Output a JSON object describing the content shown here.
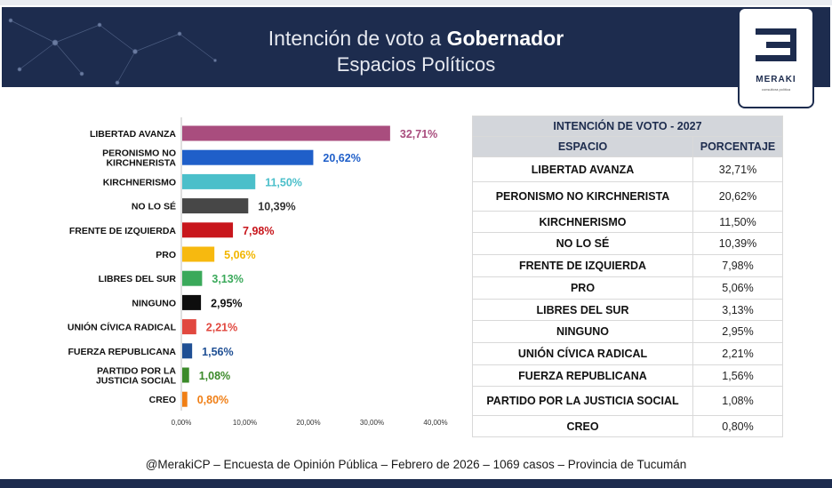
{
  "header": {
    "title_light": "Intención de voto a ",
    "title_bold": "Gobernador",
    "subtitle": "Espacios Políticos"
  },
  "logo": {
    "brand": "MERAKI",
    "tagline": "consultora política"
  },
  "table": {
    "title": "INTENCIÓN DE VOTO - 2027",
    "col_espacio": "ESPACIO",
    "col_porcentaje": "PORCENTAJE",
    "rows": [
      {
        "espacio": "LIBERTAD AVANZA",
        "pct": "32,71%"
      },
      {
        "espacio": "PERONISMO NO KIRCHNERISTA",
        "pct": "20,62%"
      },
      {
        "espacio": "KIRCHNERISMO",
        "pct": "11,50%"
      },
      {
        "espacio": "NO LO SÉ",
        "pct": "10,39%"
      },
      {
        "espacio": "FRENTE DE IZQUIERDA",
        "pct": "7,98%"
      },
      {
        "espacio": "PRO",
        "pct": "5,06%"
      },
      {
        "espacio": "LIBRES DEL SUR",
        "pct": "3,13%"
      },
      {
        "espacio": "NINGUNO",
        "pct": "2,95%"
      },
      {
        "espacio": "UNIÓN CÍVICA RADICAL",
        "pct": "2,21%"
      },
      {
        "espacio": "FUERZA REPUBLICANA",
        "pct": "1,56%"
      },
      {
        "espacio": "PARTIDO POR LA JUSTICIA SOCIAL",
        "pct": "1,08%"
      },
      {
        "espacio": "CREO",
        "pct": "0,80%"
      }
    ]
  },
  "chart_data": {
    "type": "bar",
    "orientation": "horizontal",
    "categories": [
      "LIBERTAD AVANZA",
      "PERONISMO NO KIRCHNERISTA",
      "KIRCHNERISMO",
      "NO LO SÉ",
      "FRENTE DE IZQUIERDA",
      "PRO",
      "LIBRES DEL SUR",
      "NINGUNO",
      "UNIÓN CÍVICA RADICAL",
      "FUERZA REPUBLICANA",
      "PARTIDO POR LA JUSTICIA SOCIAL",
      "CREO"
    ],
    "category_lines": [
      [
        "LIBERTAD AVANZA"
      ],
      [
        "PERONISMO NO",
        "KIRCHNERISTA"
      ],
      [
        "KIRCHNERISMO"
      ],
      [
        "NO LO SÉ"
      ],
      [
        "FRENTE DE IZQUIERDA"
      ],
      [
        "PRO"
      ],
      [
        "LIBRES DEL SUR"
      ],
      [
        "NINGUNO"
      ],
      [
        "UNIÓN CÍVICA RADICAL"
      ],
      [
        "FUERZA REPUBLICANA"
      ],
      [
        "PARTIDO POR LA",
        "JUSTICIA SOCIAL"
      ],
      [
        "CREO"
      ]
    ],
    "values": [
      32.71,
      20.62,
      11.5,
      10.39,
      7.98,
      5.06,
      3.13,
      2.95,
      2.21,
      1.56,
      1.08,
      0.8
    ],
    "value_labels": [
      "32,71%",
      "20,62%",
      "11,50%",
      "10,39%",
      "7,98%",
      "5,06%",
      "3,13%",
      "2,95%",
      "2,21%",
      "1,56%",
      "1,08%",
      "0,80%"
    ],
    "colors": [
      "#a94d7e",
      "#1f5fc9",
      "#4bbfca",
      "#474747",
      "#c8161c",
      "#f7b90f",
      "#3aa95a",
      "#0d0d0d",
      "#e1483f",
      "#1f4f94",
      "#3b8a2a",
      "#f07f16"
    ],
    "label_colors": [
      "#a94d7e",
      "#1f5fc9",
      "#4bbfca",
      "#333333",
      "#c8161c",
      "#f2b600",
      "#3aa95a",
      "#111111",
      "#e1483f",
      "#1f4f94",
      "#3b8a2a",
      "#f07f16"
    ],
    "x_ticks": [
      "0,00%",
      "10,00%",
      "20,00%",
      "30,00%",
      "40,00%"
    ],
    "xlim": [
      0,
      40
    ],
    "grid": false
  },
  "footer": "@MerakiCP – Encuesta de Opinión Pública – Febrero de 2026 – 1069 casos – Provincia de Tucumán"
}
